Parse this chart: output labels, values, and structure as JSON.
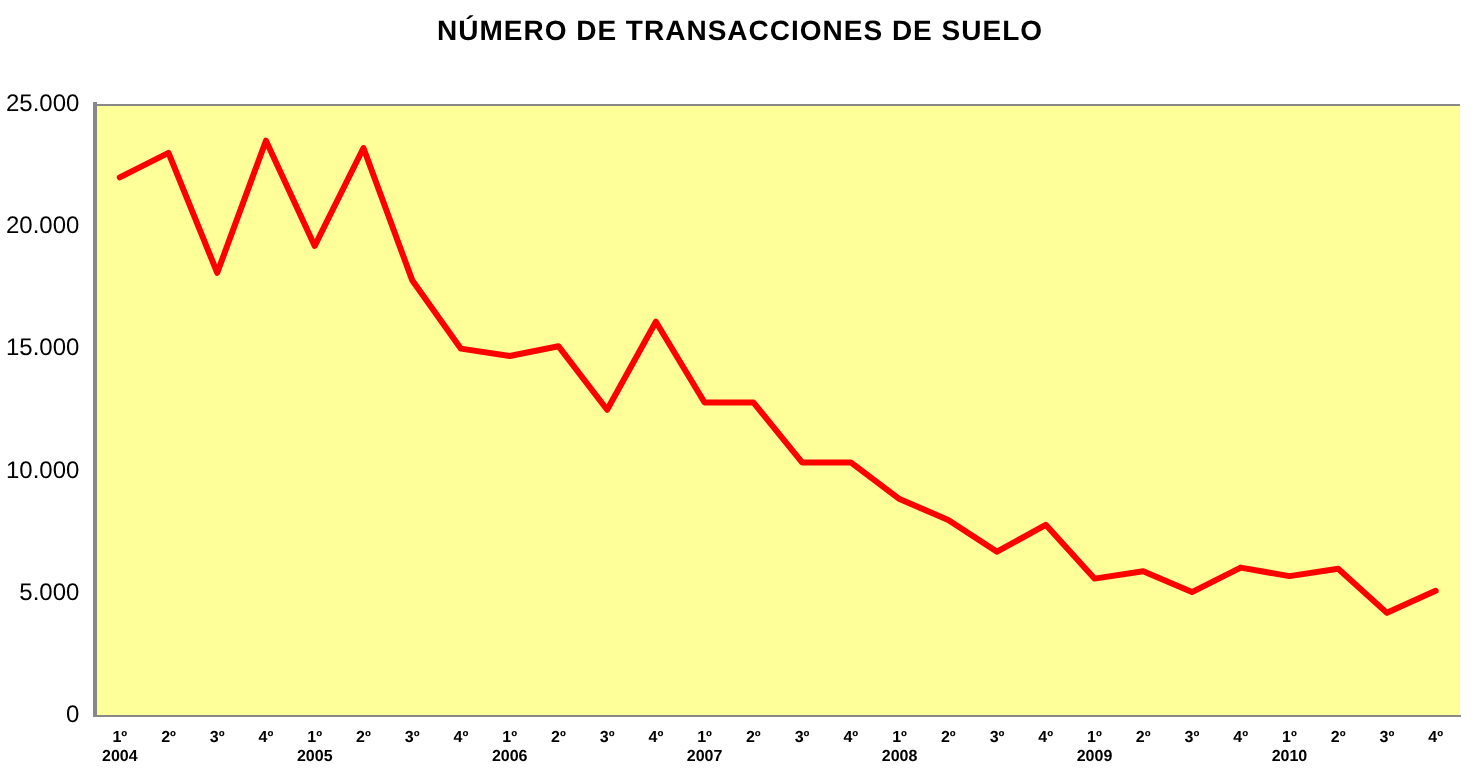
{
  "chart_data": {
    "type": "line",
    "title": "NÚMERO DE TRANSACCIONES DE SUELO",
    "categories": [
      "1º\n2004",
      "2º",
      "3º",
      "4º",
      "1º\n2005",
      "2º",
      "3º",
      "4º",
      "1º\n2006",
      "2º",
      "3º",
      "4º",
      "1º\n2007",
      "2º",
      "3º",
      "4º",
      "1º\n2008",
      "2º",
      "3º",
      "4º",
      "1º\n2009",
      "2º",
      "3º",
      "4º",
      "1º\n2010",
      "2º",
      "3º",
      "4º"
    ],
    "series": [
      {
        "color": "#ff0000",
        "values": [
          22000,
          23000,
          18100,
          23500,
          19200,
          23200,
          17800,
          15000,
          14700,
          15100,
          12500,
          16100,
          12800,
          12800,
          10350,
          10350,
          8850,
          8000,
          6700,
          7800,
          5600,
          5900,
          5050,
          6050,
          5700,
          6000,
          4200,
          5100
        ]
      }
    ],
    "ylim": [
      0,
      25000
    ],
    "yticks": [
      0,
      {
        "value": 5000,
        "label": "5.000"
      },
      {
        "value": 10000,
        "label": "10.000"
      },
      {
        "value": 15000,
        "label": "15.000"
      },
      {
        "value": 20000,
        "label": "20.000"
      },
      {
        "value": 25000,
        "label": "25.000"
      }
    ],
    "grid": false,
    "legend": false,
    "marker": "none",
    "line_style": "solid"
  }
}
